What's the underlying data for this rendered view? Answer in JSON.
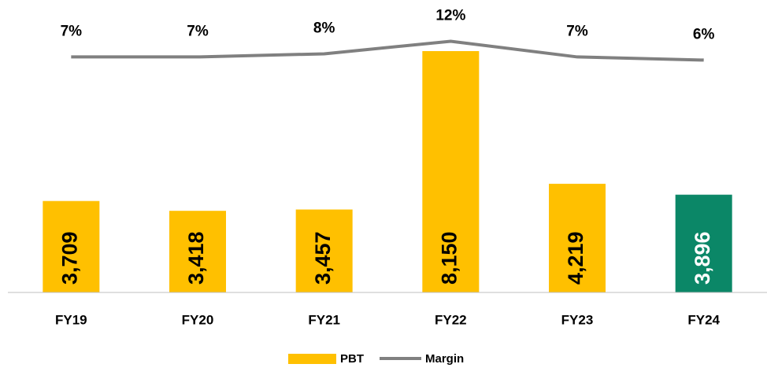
{
  "chart_data": {
    "type": "bar_line",
    "categories": [
      "FY19",
      "FY20",
      "FY21",
      "FY22",
      "FY23",
      "FY24"
    ],
    "series": [
      {
        "name": "PBT",
        "type": "bar",
        "color": "#ffc000",
        "colors": [
          "#ffc000",
          "#ffc000",
          "#ffc000",
          "#ffc000",
          "#ffc000",
          "#0b8767"
        ],
        "label_colors": [
          "#000000",
          "#000000",
          "#000000",
          "#000000",
          "#000000",
          "#ffffff"
        ],
        "values": [
          3709,
          3418,
          3457,
          8150,
          4219,
          3896
        ],
        "value_labels": [
          "3,709",
          "3,418",
          "3,457",
          "8,150",
          "4,219",
          "3,896"
        ]
      },
      {
        "name": "Margin",
        "type": "line",
        "axis": "y2",
        "color": "#808080",
        "values": [
          7,
          7,
          8,
          12,
          7,
          6
        ],
        "value_labels": [
          "7%",
          "7%",
          "8%",
          "12%",
          "7%",
          "6%"
        ]
      }
    ],
    "ylim": [
      1000,
      9000
    ],
    "y2lim": [
      -68,
      18
    ],
    "legend": "bottom"
  }
}
